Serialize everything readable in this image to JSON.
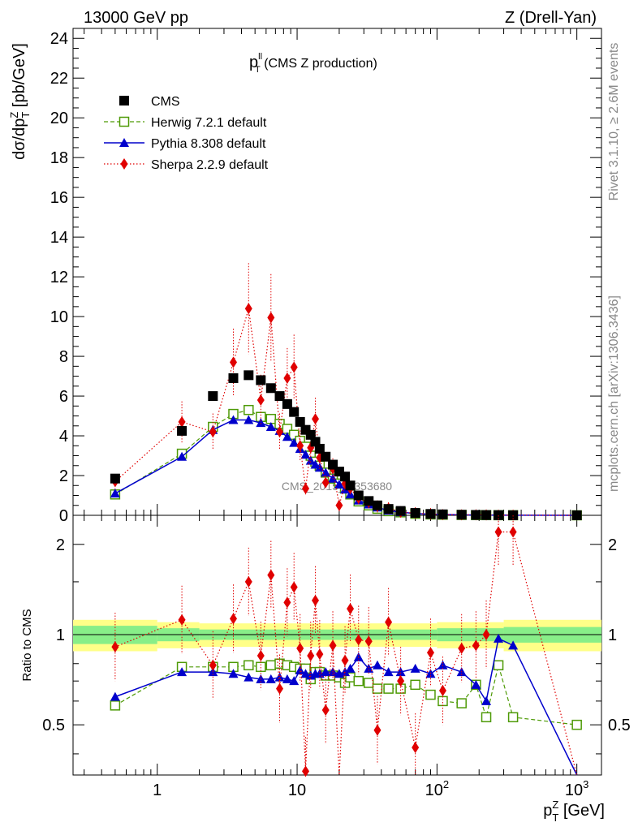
{
  "header": {
    "left": "13000 GeV pp",
    "right": "Z (Drell-Yan)"
  },
  "main": {
    "title_base": "p",
    "title_sup": "ll",
    "title_sub": "T",
    "title_rest": " (CMS Z production)",
    "ylabel": "dσ/dp",
    "ylabel_sup": "Z",
    "ylabel_sub": "T",
    "ylabel_unit": " [pb/GeV]",
    "watermark": "CMS_2015_I1353680"
  },
  "side": {
    "rivet": "Rivet 3.1.10, ≥ 2.6M events",
    "mcplots": "mcplots.cern.ch [arXiv:1306.3436]"
  },
  "ratio": {
    "ylabel": "Ratio to CMS"
  },
  "xaxis": {
    "label_base": "p",
    "label_sup": "Z",
    "label_sub": "T",
    "label_unit": " [GeV]"
  },
  "legend": [
    {
      "name": "CMS",
      "color": "#000000",
      "marker": "square-filled"
    },
    {
      "name": "Herwig 7.2.1 default",
      "color": "#4e9a06",
      "marker": "square-open"
    },
    {
      "name": "Pythia 8.308 default",
      "color": "#0000cc",
      "marker": "triangle"
    },
    {
      "name": "Sherpa 2.2.9 default",
      "color": "#e00000",
      "marker": "diamond"
    }
  ],
  "chart_data": [
    {
      "type": "line",
      "xscale": "log",
      "xlim": [
        0.25,
        1500
      ],
      "ylim": [
        0,
        24.5
      ],
      "yticks": [
        0,
        2,
        4,
        6,
        8,
        10,
        12,
        14,
        16,
        18,
        20,
        22,
        24
      ],
      "xticks": [
        "1",
        "10",
        "10^2",
        "10^3"
      ],
      "legend_position": "top-left",
      "x": [
        0.5,
        1.5,
        2.5,
        3.5,
        4.5,
        5.5,
        6.5,
        7.5,
        8.5,
        9.5,
        10.5,
        11.5,
        12.5,
        13.5,
        14.5,
        16,
        18,
        20,
        22,
        24,
        27.5,
        32.5,
        37.5,
        45,
        55,
        70,
        90,
        110,
        150,
        190,
        225,
        275,
        350,
        1000
      ],
      "series": [
        {
          "name": "CMS",
          "values": [
            1.85,
            4.25,
            6.0,
            6.9,
            7.05,
            6.8,
            6.4,
            6.0,
            5.6,
            5.2,
            4.7,
            4.3,
            4.05,
            3.7,
            3.35,
            2.95,
            2.55,
            2.2,
            1.95,
            1.5,
            1.0,
            0.72,
            0.5,
            0.32,
            0.22,
            0.12,
            0.07,
            0.05,
            0.03,
            0.02,
            0.015,
            0.01,
            0.006,
            0.002
          ]
        },
        {
          "name": "Herwig 7.2.1 default",
          "values": [
            1.05,
            3.1,
            4.45,
            5.1,
            5.3,
            4.95,
            4.85,
            4.6,
            4.35,
            4.05,
            3.75,
            3.45,
            3.0,
            2.7,
            2.5,
            2.15,
            1.85,
            1.6,
            1.35,
            1.05,
            0.7,
            0.5,
            0.33,
            0.21,
            0.15,
            0.08,
            0.045,
            0.03,
            0.018,
            0.01,
            0.009,
            0.005,
            0.004,
            0.001
          ]
        },
        {
          "name": "Pythia 8.308 default",
          "values": [
            1.1,
            2.95,
            4.3,
            4.8,
            4.8,
            4.65,
            4.45,
            4.25,
            3.95,
            3.65,
            3.35,
            3.05,
            2.75,
            2.55,
            2.4,
            2.15,
            1.85,
            1.55,
            1.3,
            1.05,
            0.75,
            0.55,
            0.4,
            0.24,
            0.16,
            0.09,
            0.05,
            0.04,
            0.025,
            0.012,
            0.012,
            0.008,
            0.003,
            0.0005
          ]
        },
        {
          "name": "Sherpa 2.2.9 default",
          "values": [
            1.7,
            4.7,
            4.2,
            7.7,
            10.4,
            5.8,
            9.95,
            4.2,
            6.9,
            7.45,
            3.5,
            1.35,
            3.4,
            4.85,
            2.9,
            1.65,
            2.35,
            0.5,
            1.6,
            1.35,
            0.85,
            0.65,
            0.45,
            0.36,
            0.16,
            0.11,
            0.06,
            0.034,
            0.025,
            0.026,
            0.02,
            0.012,
            0.009,
            0.0
          ]
        }
      ]
    },
    {
      "type": "line",
      "xscale": "log",
      "xlim": [
        0.25,
        1500
      ],
      "ylim": [
        0.34,
        2.5
      ],
      "yscale": "log",
      "yticks": [
        "0.5",
        "1",
        "2"
      ],
      "x": [
        0.5,
        1.5,
        2.5,
        3.5,
        4.5,
        5.5,
        6.5,
        7.5,
        8.5,
        9.5,
        10.5,
        11.5,
        12.5,
        13.5,
        14.5,
        16,
        18,
        20,
        22,
        24,
        27.5,
        32.5,
        37.5,
        45,
        55,
        70,
        90,
        110,
        150,
        190,
        225,
        275,
        350,
        1000
      ],
      "series": [
        {
          "name": "Herwig 7.2.1 default",
          "values": [
            0.58,
            0.78,
            0.78,
            0.78,
            0.79,
            0.78,
            0.79,
            0.8,
            0.79,
            0.78,
            0.77,
            0.77,
            0.71,
            0.75,
            0.75,
            0.73,
            0.73,
            0.72,
            0.69,
            0.72,
            0.7,
            0.69,
            0.66,
            0.66,
            0.66,
            0.68,
            0.63,
            0.6,
            0.59,
            0.68,
            0.53,
            0.79,
            0.53,
            0.5
          ]
        },
        {
          "name": "Pythia 8.308 default",
          "values": [
            0.62,
            0.75,
            0.75,
            0.74,
            0.72,
            0.71,
            0.71,
            0.72,
            0.71,
            0.7,
            0.76,
            0.74,
            0.73,
            0.74,
            0.74,
            0.75,
            0.75,
            0.74,
            0.75,
            0.77,
            0.84,
            0.77,
            0.79,
            0.75,
            0.75,
            0.77,
            0.74,
            0.79,
            0.75,
            0.68,
            0.6,
            0.97,
            0.92,
            0.27
          ]
        },
        {
          "name": "Sherpa 2.2.9 default",
          "values": [
            0.91,
            1.12,
            0.79,
            1.13,
            1.5,
            0.85,
            1.58,
            0.66,
            1.28,
            1.44,
            0.9,
            0.35,
            0.85,
            1.3,
            0.86,
            0.56,
            0.92,
            0.23,
            0.82,
            1.22,
            0.96,
            0.95,
            0.48,
            1.1,
            0.7,
            0.42,
            0.87,
            0.65,
            0.9,
            0.92,
            1.0,
            2.2,
            2.2,
            0.0
          ]
        },
        {
          "name": "CMS",
          "values": [
            1,
            1,
            1,
            1,
            1,
            1,
            1,
            1,
            1,
            1,
            1,
            1,
            1,
            1,
            1,
            1,
            1,
            1,
            1,
            1,
            1,
            1,
            1,
            1,
            1,
            1,
            1,
            1,
            1,
            1,
            1,
            1,
            1,
            1
          ]
        }
      ]
    }
  ]
}
